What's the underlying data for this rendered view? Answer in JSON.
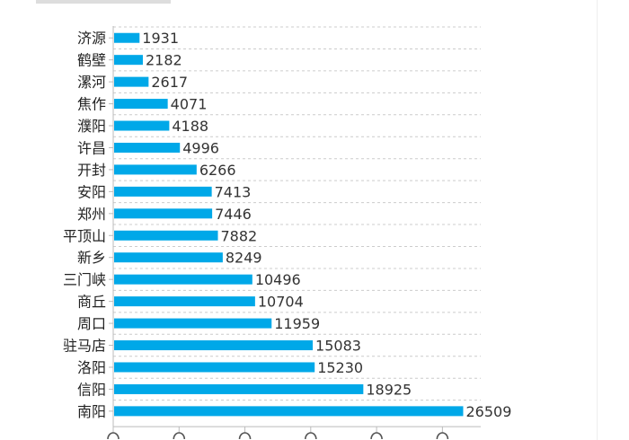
{
  "chart_data": {
    "type": "bar",
    "orientation": "horizontal",
    "categories": [
      "济源",
      "鹤壁",
      "漯河",
      "焦作",
      "濮阳",
      "许昌",
      "开封",
      "安阳",
      "郑州",
      "平顶山",
      "新乡",
      "三门峡",
      "商丘",
      "周口",
      "驻马店",
      "洛阳",
      "信阳",
      "南阳"
    ],
    "values": [
      1931,
      2182,
      2617,
      4071,
      4188,
      4996,
      6266,
      7413,
      7446,
      7882,
      8249,
      10496,
      10704,
      11959,
      15083,
      15230,
      18925,
      26509
    ],
    "xlim": [
      0,
      27500
    ],
    "x_tick_step": 5000,
    "grid": true,
    "bar_color": "#00a8e8",
    "data_labels": true
  }
}
